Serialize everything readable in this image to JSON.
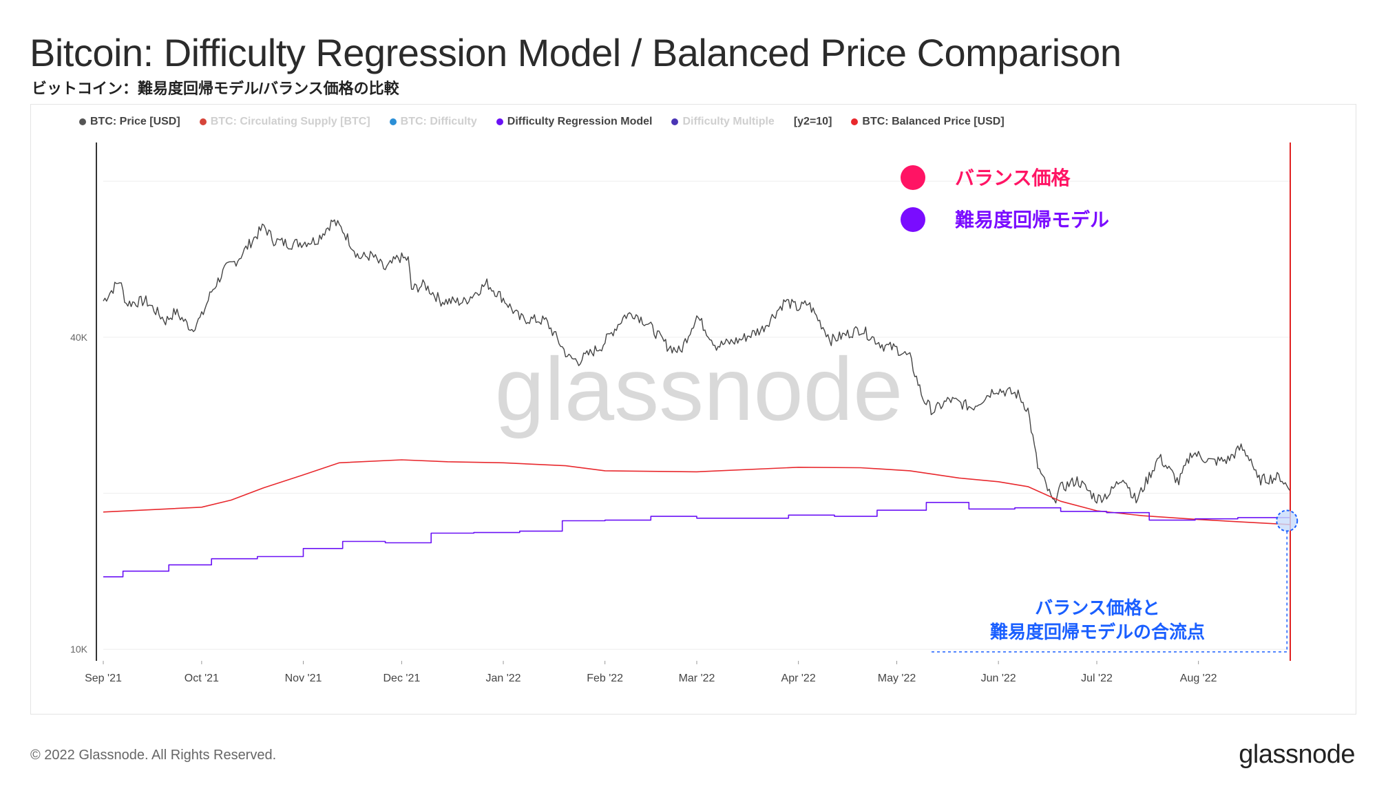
{
  "page": {
    "title": "Bitcoin: Difficulty Regression Model / Balanced Price Comparison",
    "subtitle": "ビットコイン：難易度回帰モデル/バランス価格の比較",
    "footer": "© 2022 Glassnode. All Rights Reserved.",
    "brand": "glassnode",
    "watermark": "glassnode"
  },
  "legend": [
    {
      "label": "BTC: Price [USD]",
      "color": "#555555",
      "faded": false
    },
    {
      "label": "BTC: Circulating Supply [BTC]",
      "color": "#d6453a",
      "faded": true
    },
    {
      "label": "BTC: Difficulty",
      "color": "#2b8fd6",
      "faded": true
    },
    {
      "label": "Difficulty Regression Model",
      "color": "#6a11f5",
      "faded": false
    },
    {
      "label": "Difficulty Multiple",
      "color": "#4a35b5",
      "faded": true
    },
    {
      "label": "[y2=10]",
      "color": "",
      "faded": false,
      "nodot": true
    },
    {
      "label": "BTC: Balanced Price [USD]",
      "color": "#e8282d",
      "faded": false
    }
  ],
  "annotations": {
    "balanced_label": "バランス価格",
    "balanced_color": "#ff1464",
    "model_label": "難易度回帰モデル",
    "model_color": "#7a0cff",
    "convergence_line1": "バランス価格と",
    "convergence_line2": "難易度回帰モデルの合流点",
    "convergence_color": "#1a5fff"
  },
  "chart_data": {
    "type": "line",
    "title": "Bitcoin: Difficulty Regression Model / Balanced Price Comparison",
    "y_scale": "log",
    "ylim": [
      9500,
      95000
    ],
    "y_ticks": [
      {
        "value": 10000,
        "label": "10K"
      },
      {
        "value": 40000,
        "label": "40K"
      }
    ],
    "x_range": [
      "2021-09-01",
      "2022-08-29"
    ],
    "x_ticks": [
      {
        "date": "2021-09-01",
        "label": "Sep '21"
      },
      {
        "date": "2021-10-01",
        "label": "Oct '21"
      },
      {
        "date": "2021-11-01",
        "label": "Nov '21"
      },
      {
        "date": "2021-12-01",
        "label": "Dec '21"
      },
      {
        "date": "2022-01-01",
        "label": "Jan '22"
      },
      {
        "date": "2022-02-01",
        "label": "Feb '22"
      },
      {
        "date": "2022-03-01",
        "label": "Mar '22"
      },
      {
        "date": "2022-04-01",
        "label": "Apr '22"
      },
      {
        "date": "2022-05-01",
        "label": "May '22"
      },
      {
        "date": "2022-06-01",
        "label": "Jun '22"
      },
      {
        "date": "2022-07-01",
        "label": "Jul '22"
      },
      {
        "date": "2022-08-01",
        "label": "Aug '22"
      }
    ],
    "series": [
      {
        "name": "BTC: Price [USD]",
        "color": "#444444",
        "points": [
          [
            "2021-09-01",
            47000
          ],
          [
            "2021-09-06",
            51500
          ],
          [
            "2021-09-08",
            46500
          ],
          [
            "2021-09-14",
            47000
          ],
          [
            "2021-09-20",
            43000
          ],
          [
            "2021-09-23",
            44800
          ],
          [
            "2021-09-28",
            41500
          ],
          [
            "2021-10-01",
            43800
          ],
          [
            "2021-10-04",
            49000
          ],
          [
            "2021-10-08",
            54000
          ],
          [
            "2021-10-12",
            56500
          ],
          [
            "2021-10-16",
            61000
          ],
          [
            "2021-10-20",
            65500
          ],
          [
            "2021-10-23",
            61500
          ],
          [
            "2021-10-28",
            60500
          ],
          [
            "2021-11-01",
            61000
          ],
          [
            "2021-11-05",
            61500
          ],
          [
            "2021-11-10",
            67000
          ],
          [
            "2021-11-13",
            64500
          ],
          [
            "2021-11-18",
            57000
          ],
          [
            "2021-11-22",
            57500
          ],
          [
            "2021-11-26",
            54000
          ],
          [
            "2021-11-30",
            57000
          ],
          [
            "2021-12-03",
            56500
          ],
          [
            "2021-12-04",
            49500
          ],
          [
            "2021-12-08",
            50500
          ],
          [
            "2021-12-13",
            47000
          ],
          [
            "2021-12-20",
            46800
          ],
          [
            "2021-12-27",
            50800
          ],
          [
            "2022-01-01",
            47500
          ],
          [
            "2022-01-06",
            43500
          ],
          [
            "2022-01-14",
            43000
          ],
          [
            "2022-01-21",
            36500
          ],
          [
            "2022-01-24",
            36000
          ],
          [
            "2022-01-31",
            38500
          ],
          [
            "2022-02-07",
            44000
          ],
          [
            "2022-02-10",
            44500
          ],
          [
            "2022-02-14",
            42500
          ],
          [
            "2022-02-20",
            38500
          ],
          [
            "2022-02-24",
            37500
          ],
          [
            "2022-03-01",
            44000
          ],
          [
            "2022-03-07",
            38500
          ],
          [
            "2022-03-14",
            39500
          ],
          [
            "2022-03-21",
            41500
          ],
          [
            "2022-03-28",
            47000
          ],
          [
            "2022-04-01",
            45500
          ],
          [
            "2022-04-04",
            46500
          ],
          [
            "2022-04-11",
            39500
          ],
          [
            "2022-04-20",
            41500
          ],
          [
            "2022-04-27",
            38500
          ],
          [
            "2022-05-01",
            38000
          ],
          [
            "2022-05-05",
            36500
          ],
          [
            "2022-05-09",
            30500
          ],
          [
            "2022-05-12",
            28800
          ],
          [
            "2022-05-17",
            30300
          ],
          [
            "2022-05-24",
            29300
          ],
          [
            "2022-05-31",
            31800
          ],
          [
            "2022-06-07",
            31000
          ],
          [
            "2022-06-10",
            29000
          ],
          [
            "2022-06-13",
            22500
          ],
          [
            "2022-06-18",
            19000
          ],
          [
            "2022-06-19",
            20300
          ],
          [
            "2022-06-25",
            21200
          ],
          [
            "2022-07-01",
            19500
          ],
          [
            "2022-07-05",
            20000
          ],
          [
            "2022-07-09",
            21600
          ],
          [
            "2022-07-13",
            19300
          ],
          [
            "2022-07-20",
            23500
          ],
          [
            "2022-07-26",
            21000
          ],
          [
            "2022-07-30",
            24000
          ],
          [
            "2022-08-05",
            23000
          ],
          [
            "2022-08-10",
            23200
          ],
          [
            "2022-08-14",
            24500
          ],
          [
            "2022-08-17",
            23300
          ],
          [
            "2022-08-19",
            21200
          ],
          [
            "2022-08-26",
            21500
          ],
          [
            "2022-08-29",
            20200
          ]
        ]
      },
      {
        "name": "BTC: Balanced Price [USD]",
        "color": "#e8282d",
        "points": [
          [
            "2021-09-01",
            18400
          ],
          [
            "2021-09-20",
            18650
          ],
          [
            "2021-10-01",
            18800
          ],
          [
            "2021-10-10",
            19400
          ],
          [
            "2021-10-20",
            20500
          ],
          [
            "2021-11-01",
            21700
          ],
          [
            "2021-11-12",
            22900
          ],
          [
            "2021-12-01",
            23200
          ],
          [
            "2021-12-15",
            23000
          ],
          [
            "2022-01-01",
            22900
          ],
          [
            "2022-01-20",
            22600
          ],
          [
            "2022-02-01",
            22100
          ],
          [
            "2022-03-01",
            22000
          ],
          [
            "2022-04-01",
            22450
          ],
          [
            "2022-04-20",
            22400
          ],
          [
            "2022-05-05",
            22100
          ],
          [
            "2022-05-20",
            21400
          ],
          [
            "2022-06-01",
            21050
          ],
          [
            "2022-06-10",
            20600
          ],
          [
            "2022-06-20",
            19300
          ],
          [
            "2022-07-01",
            18500
          ],
          [
            "2022-07-15",
            18100
          ],
          [
            "2022-08-01",
            17800
          ],
          [
            "2022-08-15",
            17600
          ],
          [
            "2022-08-29",
            17400
          ]
        ]
      },
      {
        "name": "Difficulty Regression Model",
        "color": "#6a11f5",
        "points": [
          [
            "2021-09-01",
            13800
          ],
          [
            "2021-09-07",
            13800
          ],
          [
            "2021-09-07",
            14150
          ],
          [
            "2021-09-21",
            14150
          ],
          [
            "2021-09-21",
            14550
          ],
          [
            "2021-10-04",
            14550
          ],
          [
            "2021-10-04",
            14950
          ],
          [
            "2021-10-18",
            14950
          ],
          [
            "2021-10-18",
            15100
          ],
          [
            "2021-11-01",
            15100
          ],
          [
            "2021-11-01",
            15650
          ],
          [
            "2021-11-13",
            15650
          ],
          [
            "2021-11-13",
            16150
          ],
          [
            "2021-11-26",
            16150
          ],
          [
            "2021-11-26",
            16050
          ],
          [
            "2021-12-10",
            16050
          ],
          [
            "2021-12-10",
            16750
          ],
          [
            "2021-12-23",
            16750
          ],
          [
            "2021-12-23",
            16800
          ],
          [
            "2022-01-06",
            16800
          ],
          [
            "2022-01-06",
            16900
          ],
          [
            "2022-01-19",
            16900
          ],
          [
            "2022-01-19",
            17700
          ],
          [
            "2022-02-01",
            17700
          ],
          [
            "2022-02-01",
            17750
          ],
          [
            "2022-02-15",
            17750
          ],
          [
            "2022-02-15",
            18050
          ],
          [
            "2022-03-01",
            18050
          ],
          [
            "2022-03-01",
            17900
          ],
          [
            "2022-03-29",
            17900
          ],
          [
            "2022-03-29",
            18150
          ],
          [
            "2022-04-12",
            18150
          ],
          [
            "2022-04-12",
            18050
          ],
          [
            "2022-04-25",
            18050
          ],
          [
            "2022-04-25",
            18550
          ],
          [
            "2022-05-10",
            18550
          ],
          [
            "2022-05-10",
            19200
          ],
          [
            "2022-05-23",
            19200
          ],
          [
            "2022-05-23",
            18650
          ],
          [
            "2022-06-06",
            18650
          ],
          [
            "2022-06-06",
            18750
          ],
          [
            "2022-06-20",
            18750
          ],
          [
            "2022-06-20",
            18450
          ],
          [
            "2022-07-04",
            18450
          ],
          [
            "2022-07-04",
            18350
          ],
          [
            "2022-07-17",
            18350
          ],
          [
            "2022-07-17",
            17750
          ],
          [
            "2022-07-31",
            17750
          ],
          [
            "2022-07-31",
            17850
          ],
          [
            "2022-08-13",
            17850
          ],
          [
            "2022-08-13",
            17950
          ],
          [
            "2022-08-29",
            17950
          ]
        ]
      }
    ],
    "highlight": {
      "date": "2022-08-28",
      "value": 17700
    }
  }
}
